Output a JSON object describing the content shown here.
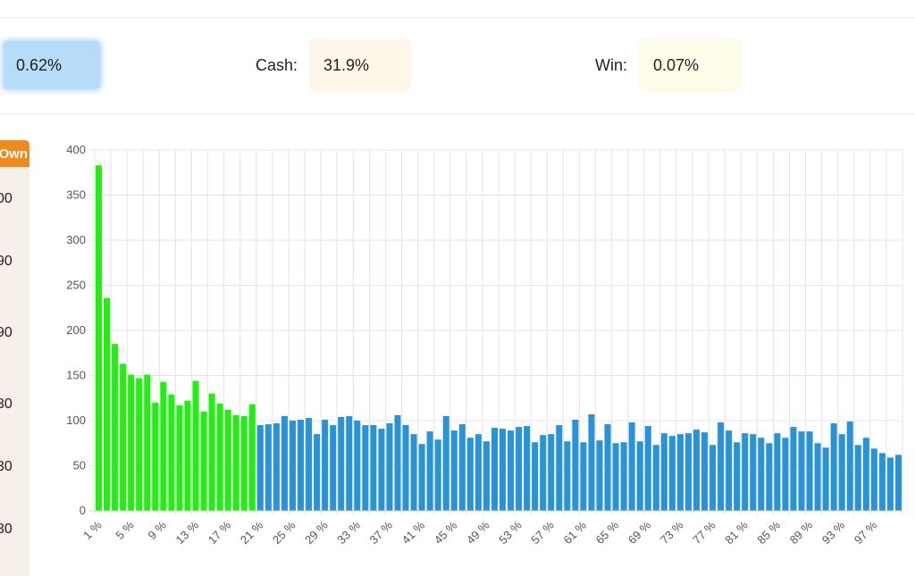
{
  "stats": {
    "first_value": "0.62%",
    "cash_label": "Cash:",
    "cash_value": "31.9%",
    "win_label": "Win:",
    "win_value": "0.07%"
  },
  "left_panel": {
    "tab_label": "Own",
    "values": [
      "00",
      "90",
      "90",
      "30",
      "30",
      "30"
    ]
  },
  "colors": {
    "green": "#22ee11",
    "blue": "#2a93d5"
  },
  "chart_data": {
    "type": "bar",
    "title": "",
    "xlabel": "",
    "ylabel": "",
    "ylim": [
      0,
      400
    ],
    "yticks": [
      0,
      50,
      100,
      150,
      200,
      250,
      300,
      350,
      400
    ],
    "green_until_index": 20,
    "grid": true,
    "categories": [
      "1 %",
      "2 %",
      "3 %",
      "4 %",
      "5 %",
      "6 %",
      "7 %",
      "8 %",
      "9 %",
      "10 %",
      "11 %",
      "12 %",
      "13 %",
      "14 %",
      "15 %",
      "16 %",
      "17 %",
      "18 %",
      "19 %",
      "20 %",
      "21 %",
      "22 %",
      "23 %",
      "24 %",
      "25 %",
      "26 %",
      "27 %",
      "28 %",
      "29 %",
      "30 %",
      "31 %",
      "32 %",
      "33 %",
      "34 %",
      "35 %",
      "36 %",
      "37 %",
      "38 %",
      "39 %",
      "40 %",
      "41 %",
      "42 %",
      "43 %",
      "44 %",
      "45 %",
      "46 %",
      "47 %",
      "48 %",
      "49 %",
      "50 %",
      "51 %",
      "52 %",
      "53 %",
      "54 %",
      "55 %",
      "56 %",
      "57 %",
      "58 %",
      "59 %",
      "60 %",
      "61 %",
      "62 %",
      "63 %",
      "64 %",
      "65 %",
      "66 %",
      "67 %",
      "68 %",
      "69 %",
      "70 %",
      "71 %",
      "72 %",
      "73 %",
      "74 %",
      "75 %",
      "76 %",
      "77 %",
      "78 %",
      "79 %",
      "80 %",
      "81 %",
      "82 %",
      "83 %",
      "84 %",
      "85 %",
      "86 %",
      "87 %",
      "88 %",
      "89 %",
      "90 %",
      "91 %",
      "92 %",
      "93 %",
      "94 %",
      "95 %",
      "96 %",
      "97 %",
      "98 %",
      "99 %",
      "100 %"
    ],
    "values": [
      383,
      236,
      185,
      163,
      151,
      147,
      151,
      120,
      143,
      129,
      117,
      122,
      144,
      110,
      130,
      119,
      112,
      106,
      105,
      118,
      95,
      96,
      97,
      105,
      100,
      101,
      103,
      85,
      101,
      95,
      104,
      105,
      100,
      95,
      95,
      91,
      97,
      106,
      95,
      85,
      74,
      88,
      79,
      105,
      89,
      96,
      81,
      85,
      77,
      92,
      91,
      89,
      93,
      94,
      76,
      84,
      85,
      95,
      77,
      101,
      76,
      107,
      78,
      96,
      75,
      76,
      98,
      77,
      94,
      73,
      86,
      83,
      85,
      86,
      90,
      87,
      73,
      98,
      89,
      76,
      86,
      85,
      81,
      75,
      86,
      81,
      93,
      88,
      88,
      75,
      70,
      97,
      85,
      99,
      73,
      81,
      69,
      64,
      59,
      62
    ]
  }
}
